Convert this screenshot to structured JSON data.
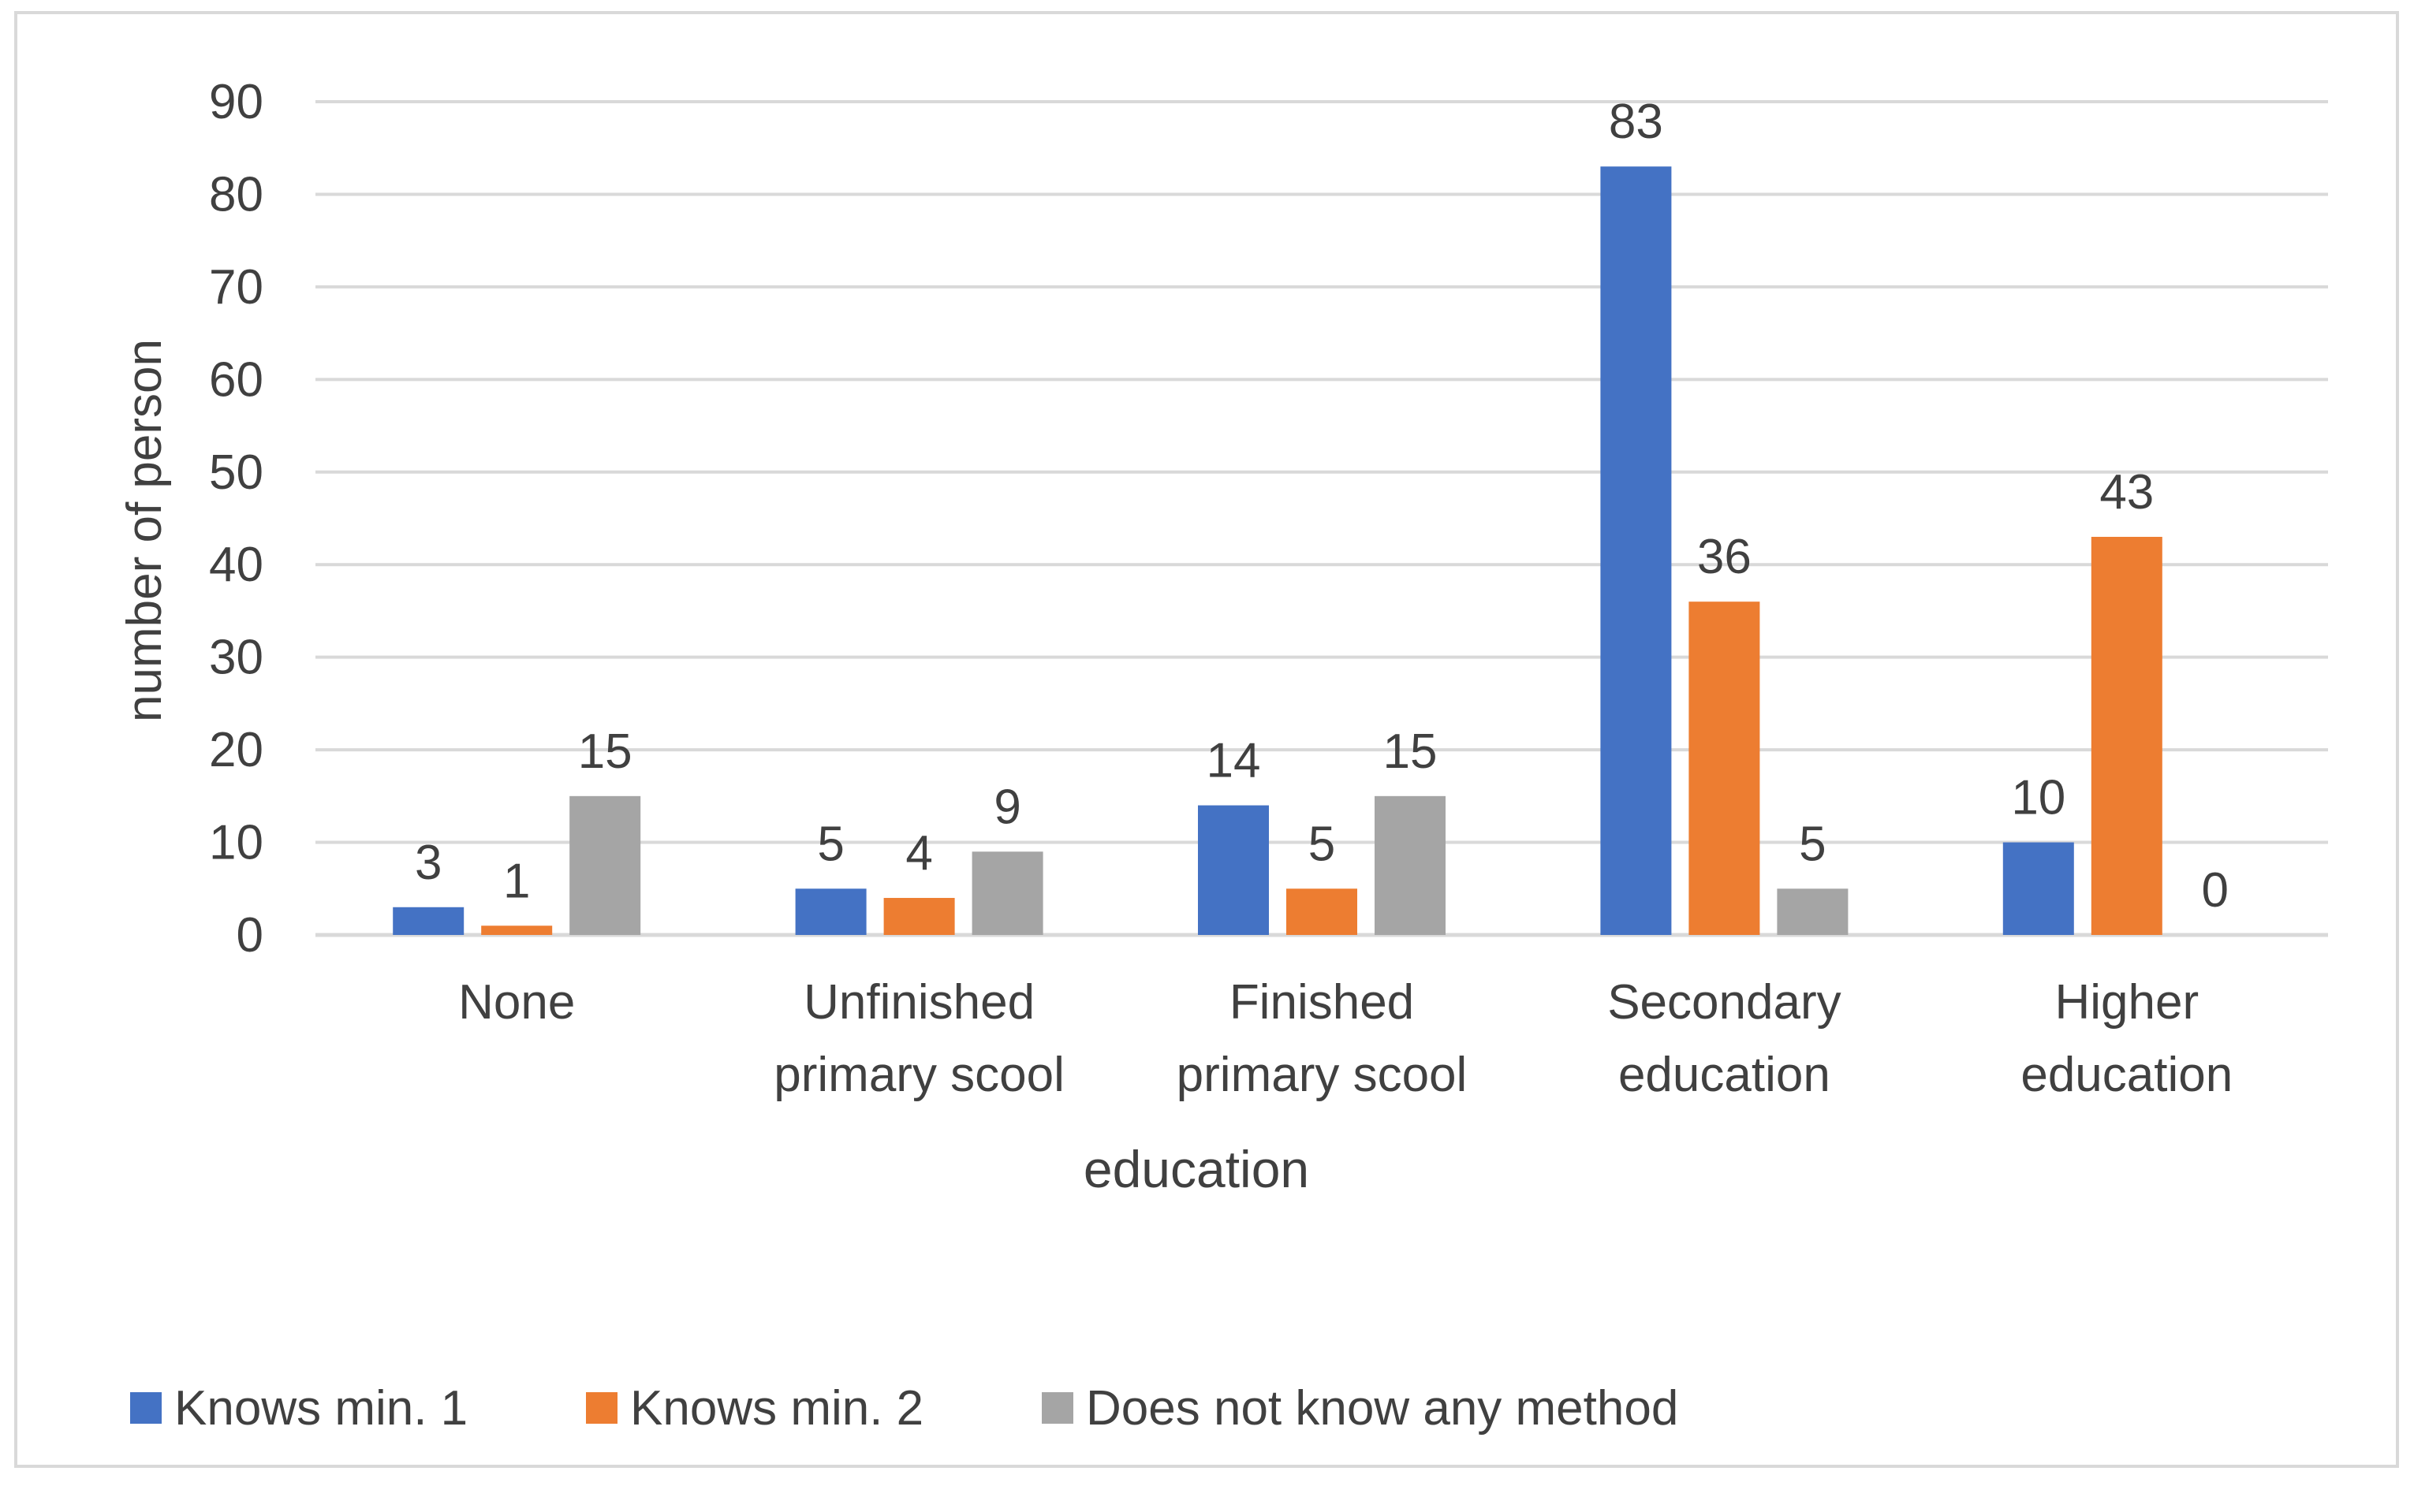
{
  "chart_data": {
    "type": "bar",
    "title": "",
    "xlabel": "education",
    "ylabel": "number of person",
    "ylim": [
      0,
      90
    ],
    "yticks": [
      0,
      10,
      20,
      30,
      40,
      50,
      60,
      70,
      80,
      90
    ],
    "categories": [
      [
        "None"
      ],
      [
        "Unfinished",
        "primary scool"
      ],
      [
        "Finished",
        "primary scool"
      ],
      [
        "Secondary",
        "education"
      ],
      [
        "Higher",
        "education"
      ]
    ],
    "series": [
      {
        "name": "Knows min. 1",
        "color": "#4472c4",
        "values": [
          3,
          5,
          14,
          83,
          10
        ]
      },
      {
        "name": "Knows min. 2",
        "color": "#ed7d31",
        "values": [
          1,
          4,
          5,
          36,
          43
        ]
      },
      {
        "name": "Does not know any method",
        "color": "#a5a5a5",
        "values": [
          15,
          9,
          15,
          5,
          0
        ]
      }
    ],
    "grid": true,
    "legend_position": "bottom-left",
    "data_labels": true
  }
}
